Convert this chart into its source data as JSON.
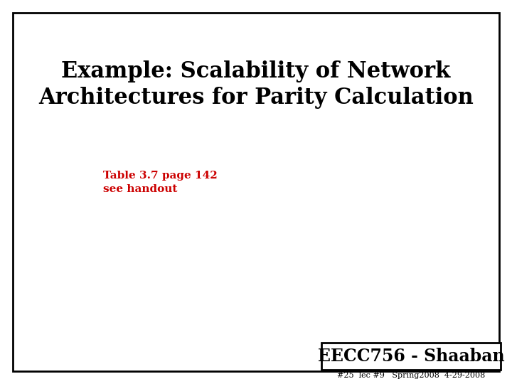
{
  "title_line1": "Example: Scalability of Network",
  "title_line2": "Architectures for Parity Calculation",
  "body_line1": "Table 3.7 page 142",
  "body_line2": "see handout",
  "footer_main": "EECC756 - Shaaban",
  "footer_sub": "#25  lec #9   Spring2008  4-29-2008",
  "bg_color": "#ffffff",
  "border_color": "#000000",
  "title_color": "#000000",
  "body_color": "#cc0000",
  "footer_main_color": "#000000",
  "footer_sub_color": "#000000",
  "title_fontsize": 22,
  "body_fontsize": 11,
  "footer_main_fontsize": 17,
  "footer_sub_fontsize": 8
}
